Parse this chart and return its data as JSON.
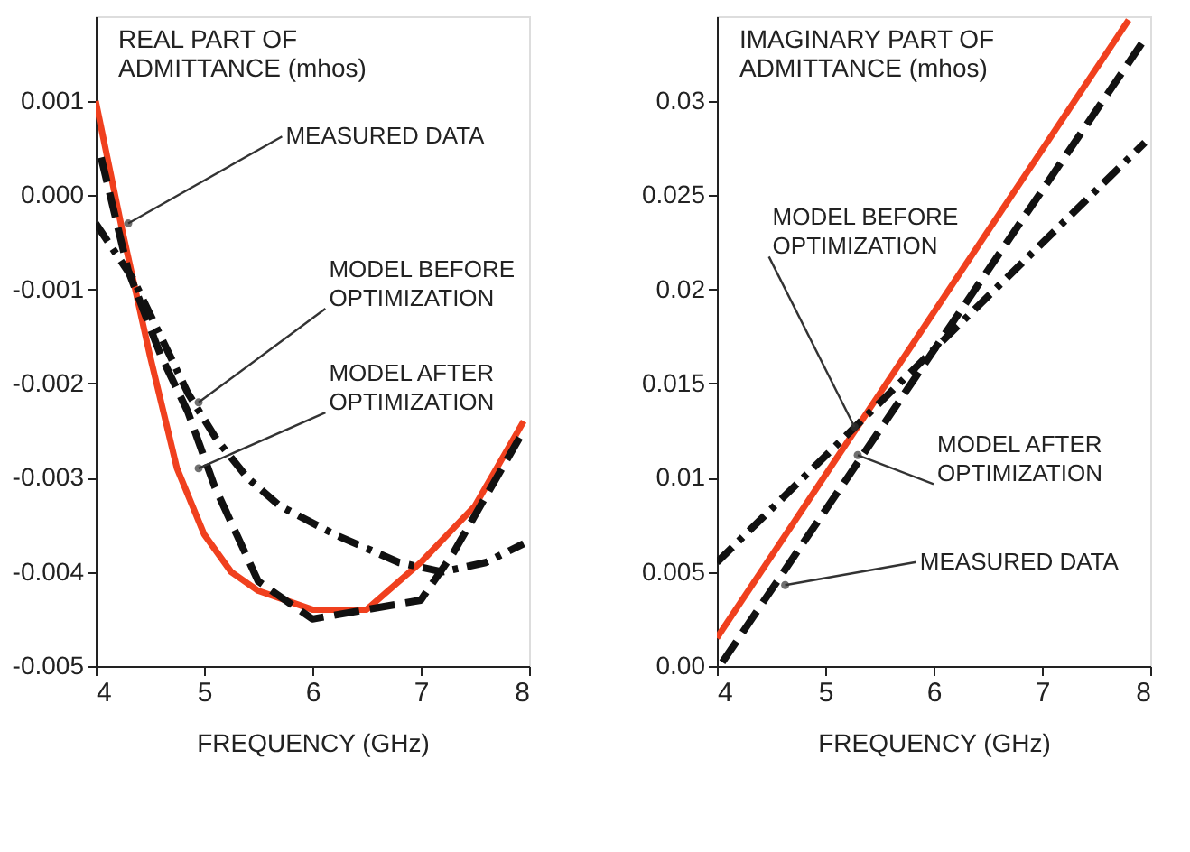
{
  "chart_data": [
    {
      "type": "line",
      "ylabel": "REAL PART OF\nADMITTANCE (mhos)",
      "xlabel": "FREQUENCY (GHz)",
      "xlim": [
        4,
        8
      ],
      "xticks": [
        4,
        5,
        6,
        7,
        8
      ],
      "ylim": [
        -0.005,
        0.0019
      ],
      "yticks": [
        -0.005,
        -0.004,
        -0.003,
        -0.002,
        -0.001,
        {
          "value": 0,
          "label": "0.000"
        },
        0.001
      ],
      "grid": false,
      "marker": "none",
      "series": [
        {
          "color": "#f0401e",
          "line_style": "solid",
          "x": [
            4,
            4.25,
            4.5,
            4.75,
            5,
            5.25,
            5.5,
            6,
            6.5,
            7,
            7.5,
            7.95
          ],
          "values": [
            0.001,
            -0.0004,
            -0.0017,
            -0.0029,
            -0.0036,
            -0.004,
            -0.0042,
            -0.0044,
            -0.0044,
            -0.0039,
            -0.0033,
            -0.0024
          ]
        },
        {
          "color": "#111111",
          "line_style": "dashed",
          "x": [
            4.05,
            4.3,
            4.6,
            4.85,
            5.1,
            5.3,
            5.5,
            5.75,
            6,
            6.5,
            7,
            7.3,
            7.6,
            7.95
          ],
          "values": [
            0.0004,
            -0.0008,
            -0.0017,
            -0.0023,
            -0.0031,
            -0.0036,
            -0.0041,
            -0.0043,
            -0.0045,
            -0.0044,
            -0.0043,
            -0.0038,
            -0.0032,
            -0.0025
          ]
        },
        {
          "color": "#111111",
          "line_style": "dashdot",
          "x": [
            4,
            4.35,
            4.6,
            4.85,
            5.12,
            5.4,
            5.7,
            6.2,
            6.8,
            7.2,
            7.6,
            7.95
          ],
          "values": [
            -0.0003,
            -0.0009,
            -0.0015,
            -0.0021,
            -0.0026,
            -0.003,
            -0.0033,
            -0.0036,
            -0.0039,
            -0.004,
            -0.0039,
            -0.0037
          ]
        }
      ],
      "annotations": [
        {
          "text": "MEASURED DATA",
          "x": 4.3,
          "y": -0.0003
        },
        {
          "text": "MODEL BEFORE\nOPTIMIZATION",
          "x": 4.95,
          "y": -0.0022
        },
        {
          "text": "MODEL AFTER\nOPTIMIZATION",
          "x": 4.95,
          "y": -0.0029
        }
      ]
    },
    {
      "type": "line",
      "ylabel": "IMAGINARY PART OF\nADMITTANCE (mhos)",
      "xlabel": "FREQUENCY (GHz)",
      "xlim": [
        4,
        8
      ],
      "xticks": [
        4,
        5,
        6,
        7,
        8
      ],
      "ylim": [
        0,
        0.0345
      ],
      "yticks": [
        {
          "value": 0,
          "label": "0.00"
        },
        0.005,
        0.01,
        0.015,
        0.02,
        0.025,
        0.03
      ],
      "grid": false,
      "marker": "none",
      "series": [
        {
          "color": "#f0401e",
          "line_style": "solid",
          "x": [
            4,
            7.8
          ],
          "values": [
            0.0015,
            0.0343
          ]
        },
        {
          "color": "#111111",
          "line_style": "dashed",
          "x": [
            4.05,
            7.95
          ],
          "values": [
            0.0002,
            0.0333
          ]
        },
        {
          "color": "#111111",
          "line_style": "dashdot",
          "x": [
            4,
            7.95
          ],
          "values": [
            0.0055,
            0.0278
          ]
        }
      ],
      "annotations": [
        {
          "text": "MODEL BEFORE\nOPTIMIZATION",
          "x": 5.27,
          "y": 0.0127
        },
        {
          "text": "MODEL AFTER\nOPTIMIZATION",
          "x": 5.3,
          "y": 0.0112
        },
        {
          "text": "MEASURED DATA",
          "x": 4.63,
          "y": 0.0043
        }
      ]
    }
  ]
}
